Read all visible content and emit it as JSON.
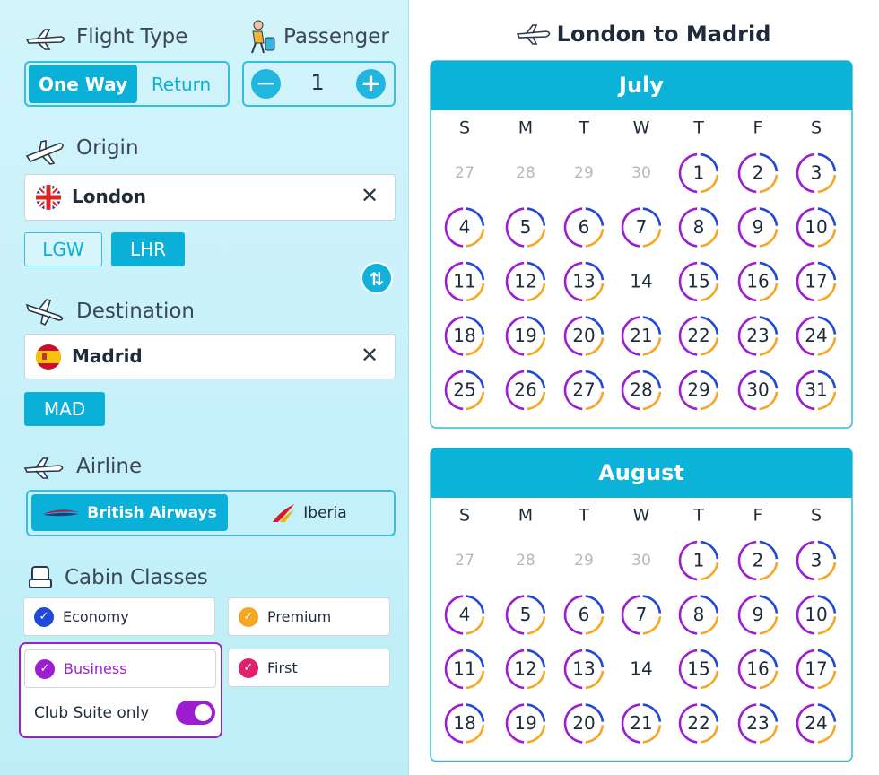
{
  "flight_type": {
    "label": "Flight Type",
    "options": [
      "One Way",
      "Return"
    ],
    "selected": 0
  },
  "passenger": {
    "label": "Passenger",
    "count": 1
  },
  "origin": {
    "label": "Origin",
    "city": "London",
    "airports": [
      "LGW",
      "LHR"
    ],
    "selected_airport": 1
  },
  "destination": {
    "label": "Destination",
    "city": "Madrid",
    "airports": [
      "MAD"
    ],
    "selected_airport": 0
  },
  "airline": {
    "label": "Airline",
    "options": [
      "British Airways",
      "Iberia"
    ],
    "selected": 0
  },
  "cabin": {
    "label": "Cabin Classes",
    "options": [
      "Economy",
      "Premium",
      "Business",
      "First"
    ],
    "club": "Club Suite only"
  },
  "route_title": "London to Madrid",
  "weekdays": [
    "S",
    "M",
    "T",
    "W",
    "T",
    "F",
    "S"
  ],
  "months": [
    {
      "name": "July",
      "prev_days": [
        27,
        28,
        29,
        30
      ],
      "days": [
        1,
        2,
        3,
        4,
        5,
        6,
        7,
        8,
        9,
        10,
        11,
        12,
        13,
        14,
        15,
        16,
        17,
        18,
        19,
        20,
        21,
        22,
        23,
        24,
        25,
        26,
        27,
        28,
        29,
        30,
        31
      ],
      "unavailable_days": [
        14
      ]
    },
    {
      "name": "August",
      "prev_days": [
        27,
        28,
        29,
        30
      ],
      "days": [
        1,
        2,
        3,
        4,
        5,
        6,
        7,
        8,
        9,
        10,
        11,
        12,
        13,
        14,
        15,
        16,
        17,
        18,
        19,
        20,
        21,
        22,
        23,
        24
      ],
      "unavailable_days": [
        14
      ]
    }
  ]
}
